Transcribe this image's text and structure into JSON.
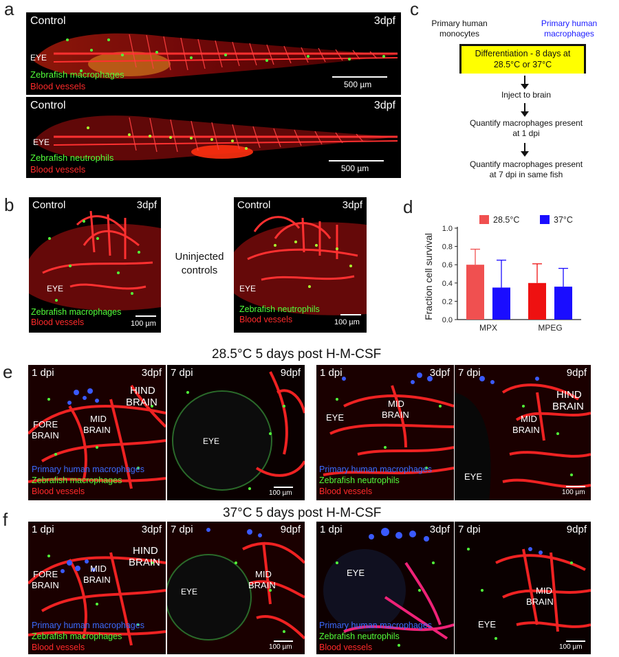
{
  "panels": {
    "a": {
      "label": "a",
      "images": [
        {
          "tl": "Control",
          "tr": "3dpf",
          "eye": "EYE",
          "green": "Zebrafish macrophages",
          "red": "Blood vessels",
          "scale": "500 µm"
        },
        {
          "tl": "Control",
          "tr": "3dpf",
          "eye": "EYE",
          "green": "Zebrafish neutrophils",
          "red": "Blood vessels",
          "scale": "500 µm"
        }
      ]
    },
    "b": {
      "label": "b",
      "middle_text": "Uninjected controls",
      "images": [
        {
          "tl": "Control",
          "tr": "3dpf",
          "eye": "EYE",
          "green": "Zebrafish macrophages",
          "red": "Blood vessels",
          "scale": "100 µm"
        },
        {
          "tl": "Control",
          "tr": "3dpf",
          "eye": "EYE",
          "green": "Zebrafish neutrophils",
          "red": "Blood vessels",
          "scale": "100 µm"
        }
      ]
    },
    "c": {
      "label": "c",
      "left_header": "Primary human monocytes",
      "right_header": "Primary human macrophages",
      "box": "Differentiation - 8 days at 28.5°C or 37°C",
      "step1": "Inject to brain",
      "step2": "Quantify macrophages present at 1 dpi",
      "step3": "Quantify macrophages present at 7 dpi in same fish",
      "colors": {
        "box": "#ffff00",
        "right_header": "#1a1aff"
      }
    },
    "d": {
      "label": "d"
    },
    "e": {
      "label": "e",
      "title": "28.5°C 5 days post H-M-CSF",
      "images": [
        {
          "tl": "1 dpi",
          "tr": "3dpf",
          "r1": "HIND",
          "r2": "BRAIN",
          "m1": "MID",
          "m2": "BRAIN",
          "f1": "FORE",
          "f2": "BRAIN",
          "blue": "Primary human macrophages",
          "green": "Zebrafish macrophages",
          "red": "Blood vessels"
        },
        {
          "tl": "7 dpi",
          "tr": "9dpf",
          "eye": "EYE",
          "scale": "100 µm"
        },
        {
          "tl": "1 dpi",
          "tr": "3dpf",
          "eye": "EYE",
          "m1": "MID",
          "m2": "BRAIN",
          "blue": "Primary human macrophages",
          "green": "Zebrafish neutrophils",
          "red": "Blood vessels"
        },
        {
          "tl": "7 dpi",
          "tr": "9dpf",
          "r1": "HIND",
          "r2": "BRAIN",
          "m1": "MID",
          "m2": "BRAIN",
          "eye": "EYE",
          "scale": "100 µm"
        }
      ]
    },
    "f": {
      "label": "f",
      "title": "37°C 5 days post H-M-CSF",
      "images": [
        {
          "tl": "1 dpi",
          "tr": "3dpf",
          "r1": "HIND",
          "r2": "BRAIN",
          "m1": "MID",
          "m2": "BRAIN",
          "f1": "FORE",
          "f2": "BRAIN",
          "blue": "Primary human macrophages",
          "green": "Zebrafish macrophages",
          "red": "Blood vessels"
        },
        {
          "tl": "7 dpi",
          "tr": "9dpf",
          "eye": "EYE",
          "m1": "MID",
          "m2": "BRAIN",
          "scale": "100 µm"
        },
        {
          "tl": "1 dpi",
          "tr": "3dpf",
          "eye": "EYE",
          "blue": "Primary human macrophages",
          "green": "Zebrafish neutrophils",
          "red": "Blood vessels"
        },
        {
          "tl": "7 dpi",
          "tr": "9dpf",
          "m1": "MID",
          "m2": "BRAIN",
          "eye": "EYE",
          "scale": "100 µm"
        }
      ]
    }
  },
  "chart_data": {
    "type": "bar",
    "categories": [
      "MPX",
      "MPEG"
    ],
    "series": [
      {
        "name": "28.5°C",
        "values": [
          0.6,
          0.4
        ],
        "errors": [
          0.17,
          0.21
        ],
        "colors": [
          "#f05050",
          "#ee1111"
        ]
      },
      {
        "name": "37°C",
        "values": [
          0.35,
          0.36
        ],
        "errors": [
          0.3,
          0.2
        ],
        "colors": [
          "#1a0dff",
          "#1a0dff"
        ]
      }
    ],
    "ylabel": "Fraction cell survival",
    "ylim": [
      0,
      1.0
    ],
    "yticks": [
      "0.0",
      "0.2",
      "0.4",
      "0.6",
      "0.8",
      "1.0"
    ],
    "legend_position": "top"
  }
}
